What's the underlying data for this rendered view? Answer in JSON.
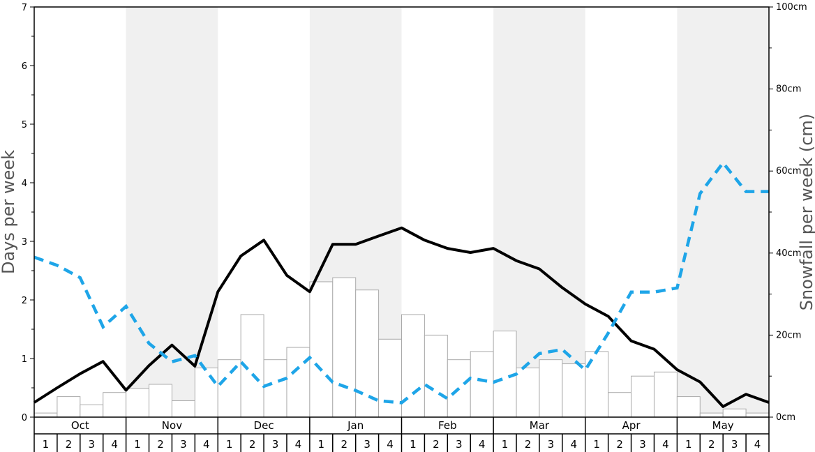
{
  "chart_data": {
    "type": "bar+line",
    "months": [
      "Oct",
      "Nov",
      "Dec",
      "Jan",
      "Feb",
      "Mar",
      "Apr",
      "May"
    ],
    "weeks": [
      "1",
      "2",
      "3",
      "4"
    ],
    "ylabel_left": "Days per week",
    "ylabel_right": "Snowfall per week (cm)",
    "ylim_left": [
      0,
      7
    ],
    "ylim_right": [
      0,
      100
    ],
    "left_ticks": [
      "0",
      "1",
      "2",
      "3",
      "4",
      "5",
      "6",
      "7"
    ],
    "right_ticks": [
      "0cm",
      "20cm",
      "40cm",
      "60cm",
      "80cm",
      "100cm"
    ],
    "grid": false,
    "shaded_months": [
      "Nov",
      "Jan",
      "Mar",
      "May"
    ],
    "series": [
      {
        "type": "bar",
        "axis": "left",
        "values": [
          0.07,
          0.35,
          0.21,
          0.42,
          0.49,
          0.56,
          0.28,
          0.84,
          0.98,
          1.75,
          0.98,
          1.19,
          2.31,
          2.38,
          2.17,
          1.33,
          1.75,
          1.4,
          0.98,
          1.12,
          1.47,
          0.84,
          0.98,
          0.91,
          1.12,
          0.42,
          0.7,
          0.77,
          0.35,
          0.07,
          0.14,
          0.07
        ],
        "fill": "#ffffff",
        "stroke": "#aaaaaa"
      },
      {
        "type": "line",
        "axis": "left",
        "style": "solid",
        "color": "#000000",
        "values": [
          0.25,
          0.5,
          0.74,
          0.95,
          0.46,
          0.88,
          1.23,
          0.87,
          2.14,
          2.75,
          3.02,
          2.42,
          2.14,
          2.95,
          2.95,
          3.09,
          3.23,
          3.02,
          2.88,
          2.81,
          2.88,
          2.67,
          2.53,
          2.21,
          1.93,
          1.72,
          1.3,
          1.16,
          0.81,
          0.6,
          0.18,
          0.39,
          0.25
        ]
      },
      {
        "type": "line",
        "axis": "right",
        "style": "dashed",
        "color": "#1ea5e8",
        "values": [
          39,
          37,
          34,
          22,
          27,
          18,
          13.5,
          15,
          7.5,
          13.5,
          7.5,
          9.5,
          14.5,
          8.5,
          6.5,
          4,
          3.5,
          8,
          4.5,
          9.5,
          8.5,
          10.5,
          15.5,
          16.5,
          11.5,
          20.5,
          30.5,
          30.5,
          31.5,
          54.5,
          62,
          55,
          55
        ]
      }
    ]
  }
}
